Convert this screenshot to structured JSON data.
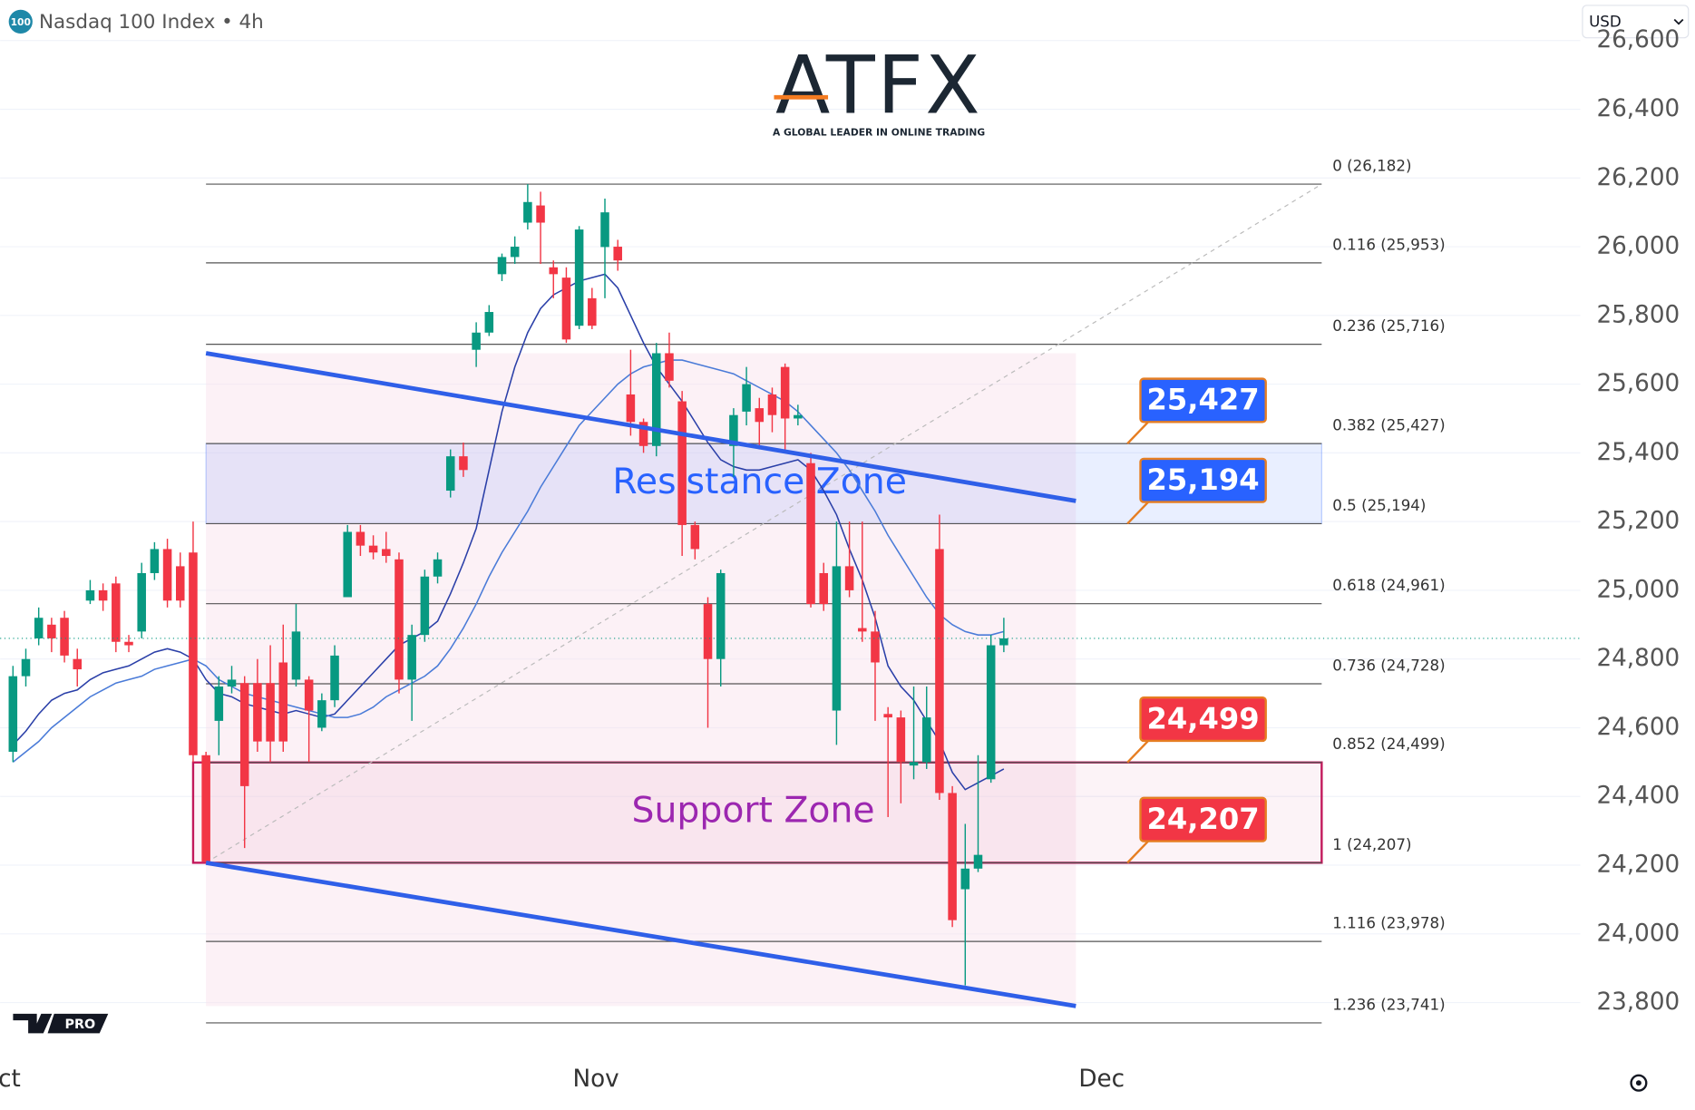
{
  "header": {
    "badge": "100",
    "title": "Nasdaq 100 Index • 4h",
    "currency": "USD"
  },
  "logo": {
    "brand": "ATFX",
    "tagline": "A GLOBAL LEADER IN ONLINE TRADING",
    "platform": "PRO"
  },
  "chart_data": {
    "type": "candlestick",
    "ylim": [
      23651,
      26718
    ],
    "yticks": [
      {
        "value": 23800,
        "label": "23,800"
      },
      {
        "value": 24000,
        "label": "24,000"
      },
      {
        "value": 24200,
        "label": "24,200"
      },
      {
        "value": 24400,
        "label": "24,400"
      },
      {
        "value": 24600,
        "label": "24,600"
      },
      {
        "value": 24800,
        "label": "24,800"
      },
      {
        "value": 25000,
        "label": "25,000"
      },
      {
        "value": 25200,
        "label": "25,200"
      },
      {
        "value": 25400,
        "label": "25,400"
      },
      {
        "value": 25600,
        "label": "25,600"
      },
      {
        "value": 25800,
        "label": "25,800"
      },
      {
        "value": 26000,
        "label": "26,000"
      },
      {
        "value": 26200,
        "label": "26,200"
      },
      {
        "value": 26400,
        "label": "26,400"
      },
      {
        "value": 26600,
        "label": "26,600"
      }
    ],
    "xlim": [
      -1,
      121.8
    ],
    "xticks": [
      {
        "value": -1,
        "label": "Oct"
      },
      {
        "value": 45.3,
        "label": "Nov"
      },
      {
        "value": 84.6,
        "label": "Dec"
      }
    ],
    "grid": true,
    "up_color": "#089981",
    "down_color": "#f23645",
    "candles": {
      "x": [
        0,
        1,
        2,
        3,
        4,
        5,
        6,
        7,
        8,
        9,
        10,
        11,
        12,
        13,
        14,
        15,
        16,
        17,
        18,
        19,
        20,
        21,
        22,
        23,
        24,
        25,
        26,
        27,
        28,
        29,
        30,
        31,
        32,
        33,
        34,
        35,
        36,
        37,
        38,
        39,
        40,
        41,
        42,
        43,
        44,
        45,
        46,
        47,
        48,
        49,
        50,
        51,
        52,
        53,
        54,
        55,
        56,
        57,
        58,
        59,
        60,
        61,
        62,
        63,
        64,
        65,
        66,
        67,
        68,
        69,
        70,
        71,
        72,
        73,
        74,
        75,
        76,
        77
      ],
      "open": [
        24530,
        24750,
        24860,
        24900,
        24920,
        24800,
        24970,
        25000,
        25020,
        24850,
        24880,
        25050,
        25120,
        25070,
        25110,
        24520,
        24620,
        24720,
        24730,
        24730,
        24730,
        24790,
        24740,
        24740,
        24600,
        24680,
        24980,
        25170,
        25130,
        25120,
        25090,
        24740,
        24870,
        25040,
        25290,
        25390,
        25700,
        25750,
        25920,
        25970,
        26070,
        26120,
        25940,
        25910,
        25770,
        25850,
        25999,
        26000,
        25570,
        25490,
        25420,
        25690,
        25550,
        25190,
        24960,
        24800,
        25420,
        25520,
        25530,
        25570,
        25650,
        25500,
        25370,
        25050,
        24650,
        25070,
        24890,
        24880,
        24640,
        24630,
        24490,
        24500,
        25120,
        24410,
        24130,
        24190,
        24450,
        24840
      ],
      "high": [
        24780,
        24830,
        24950,
        24920,
        24940,
        24830,
        25030,
        25020,
        25040,
        24870,
        25080,
        25140,
        25150,
        25110,
        25200,
        24530,
        24750,
        24780,
        24750,
        24800,
        24840,
        24900,
        24960,
        24750,
        24700,
        24840,
        25190,
        25190,
        25160,
        25170,
        25110,
        24900,
        25060,
        25110,
        25410,
        25430,
        25780,
        25830,
        25980,
        26030,
        26182,
        26160,
        25960,
        25940,
        26060,
        25880,
        26140,
        26020,
        25700,
        25500,
        25720,
        25750,
        25580,
        25200,
        24980,
        25060,
        25530,
        25650,
        25560,
        25590,
        25660,
        25540,
        25400,
        25080,
        25200,
        25200,
        25200,
        24940,
        24660,
        24650,
        24720,
        24720,
        25220,
        24430,
        24320,
        24520,
        24870,
        24920
      ],
      "low": [
        24500,
        24720,
        24840,
        24820,
        24790,
        24720,
        24960,
        24940,
        24820,
        24820,
        24860,
        25030,
        24950,
        24950,
        24500,
        24207,
        24520,
        24700,
        24250,
        24530,
        24500,
        24530,
        24720,
        24500,
        24590,
        24660,
        24980,
        25100,
        25090,
        25080,
        24700,
        24620,
        24850,
        25020,
        25270,
        25330,
        25650,
        25740,
        25900,
        25950,
        26050,
        25950,
        25850,
        25720,
        25760,
        25760,
        25850,
        25930,
        25450,
        25400,
        25390,
        25590,
        25100,
        25090,
        24600,
        24720,
        25330,
        25480,
        25410,
        25460,
        25400,
        25480,
        24950,
        24940,
        24550,
        24980,
        24850,
        24620,
        24340,
        24380,
        24450,
        24480,
        24390,
        24020,
        23850,
        24180,
        24440,
        24820
      ],
      "close": [
        24750,
        24800,
        24920,
        24860,
        24810,
        24770,
        25000,
        24970,
        24850,
        24840,
        25050,
        25120,
        24970,
        24970,
        24520,
        24210,
        24720,
        24740,
        24430,
        24560,
        24560,
        24560,
        24880,
        24650,
        24680,
        24810,
        25170,
        25130,
        25110,
        25100,
        24740,
        24870,
        25040,
        25090,
        25390,
        25350,
        25750,
        25810,
        25970,
        26000,
        26130,
        26070,
        25920,
        25730,
        26050,
        25770,
        26100,
        25960,
        25490,
        25420,
        25690,
        25610,
        25190,
        25120,
        24800,
        25050,
        25510,
        25600,
        25490,
        25510,
        25500,
        25510,
        24960,
        24960,
        25070,
        25000,
        24880,
        24790,
        24630,
        24500,
        24500,
        24630,
        24410,
        24040,
        24190,
        24230,
        24840,
        24860
      ]
    },
    "series": [
      {
        "color": "#2a3fa8",
        "values": [
          24550,
          24590,
          24640,
          24680,
          24700,
          24710,
          24740,
          24760,
          24770,
          24780,
          24800,
          24820,
          24830,
          24820,
          24800,
          24740,
          24700,
          24690,
          24670,
          24660,
          24650,
          24640,
          24650,
          24640,
          24630,
          24640,
          24680,
          24720,
          24760,
          24800,
          24840,
          24860,
          24880,
          24910,
          24990,
          25080,
          25180,
          25350,
          25520,
          25650,
          25750,
          25820,
          25860,
          25880,
          25900,
          25910,
          25920,
          25880,
          25800,
          25720,
          25650,
          25600,
          25550,
          25490,
          25430,
          25380,
          25360,
          25350,
          25350,
          25360,
          25370,
          25380,
          25350,
          25290,
          25220,
          25120,
          25030,
          24920,
          24780,
          24720,
          24680,
          24620,
          24560,
          24470,
          24420,
          24440,
          24460,
          24480
        ]
      },
      {
        "color": "#4a7bd8",
        "values": [
          24500,
          24530,
          24560,
          24600,
          24630,
          24660,
          24690,
          24710,
          24730,
          24740,
          24750,
          24770,
          24780,
          24790,
          24800,
          24780,
          24740,
          24720,
          24700,
          24690,
          24680,
          24670,
          24660,
          24650,
          24640,
          24630,
          24630,
          24640,
          24660,
          24690,
          24710,
          24730,
          24750,
          24780,
          24830,
          24890,
          24960,
          25040,
          25110,
          25170,
          25230,
          25300,
          25360,
          25420,
          25480,
          25520,
          25560,
          25600,
          25630,
          25650,
          25660,
          25670,
          25670,
          25660,
          25650,
          25640,
          25630,
          25610,
          25590,
          25570,
          25550,
          25520,
          25480,
          25440,
          25400,
          25350,
          25290,
          25230,
          25160,
          25100,
          25040,
          24980,
          24930,
          24900,
          24880,
          24870,
          24870,
          24880
        ]
      }
    ],
    "fib_anchor": {
      "x": [
        15,
        101.7
      ],
      "y": [
        24207,
        26182
      ]
    },
    "fib_levels": [
      {
        "value": 26182,
        "label": "0 (26,182)"
      },
      {
        "value": 25953,
        "label": "0.116 (25,953)"
      },
      {
        "value": 25716,
        "label": "0.236 (25,716)"
      },
      {
        "value": 25427,
        "label": "0.382 (25,427)"
      },
      {
        "value": 25194,
        "label": "0.5 (25,194)"
      },
      {
        "value": 24961,
        "label": "0.618 (24,961)"
      },
      {
        "value": 24728,
        "label": "0.736 (24,728)"
      },
      {
        "value": 24499,
        "label": "0.852 (24,499)"
      },
      {
        "value": 24207,
        "label": "1 (24,207)"
      },
      {
        "value": 23978,
        "label": "1.116 (23,978)"
      },
      {
        "value": 23741,
        "label": "1.236 (23,741)"
      }
    ],
    "channel_color": "#2f5fe8",
    "channel": [
      {
        "x": [
          15,
          82.6
        ],
        "y": [
          25690,
          25260
        ]
      },
      {
        "x": [
          15,
          82.6
        ],
        "y": [
          24207,
          23790
        ]
      }
    ],
    "zones": [
      {
        "label": "Resistance Zone",
        "x": [
          15,
          101.7
        ],
        "low": 25194,
        "high": 25427,
        "color": "#2962ff"
      },
      {
        "label": "Support Zone",
        "x": [
          14,
          101.7
        ],
        "low": 24207,
        "high": 24499,
        "color": "#c2185b",
        "text_color": "#9c27b0"
      }
    ],
    "price_tags": [
      {
        "value": 25427,
        "label": "25,427",
        "color": "#2962ff"
      },
      {
        "value": 25194,
        "label": "25,194",
        "color": "#2962ff"
      },
      {
        "value": 24499,
        "label": "24,499",
        "color": "#f23645"
      },
      {
        "value": 24207,
        "label": "24,207",
        "color": "#f23645"
      }
    ]
  }
}
